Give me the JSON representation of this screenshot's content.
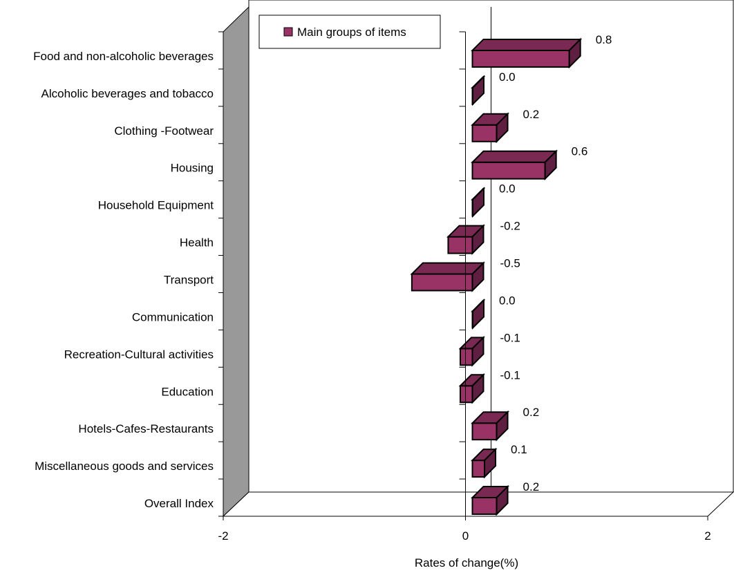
{
  "chart_data": {
    "type": "bar",
    "orientation": "horizontal",
    "three_d": true,
    "categories": [
      "Food and non-alcoholic beverages",
      "Alcoholic beverages and tobacco",
      "Clothing -Footwear",
      "Housing",
      "Household Equipment",
      "Health",
      "Transport",
      "Communication",
      "Recreation-Cultural activities",
      "Education",
      "Hotels-Cafes-Restaurants",
      "Miscellaneous goods and services",
      "Overall Index"
    ],
    "series": [
      {
        "name": "Main groups of items",
        "values": [
          0.8,
          0.0,
          0.2,
          0.6,
          0.0,
          -0.2,
          -0.5,
          0.0,
          -0.1,
          -0.1,
          0.2,
          0.1,
          0.2
        ],
        "labels": [
          "0.8",
          "0.0",
          "0.2",
          "0.6",
          "0.0",
          "-0.2",
          "-0.5",
          "0.0",
          "-0.1",
          "-0.1",
          "0.2",
          "0.1",
          "0.2"
        ]
      }
    ],
    "xlabel": "Rates of change(%)",
    "xlim": [
      -2,
      2
    ],
    "xticks": [
      "-2",
      "0",
      "2"
    ],
    "legend": "top-left",
    "colors": {
      "bar_front": "#993366",
      "bar_top": "#7a2a52",
      "bar_side": "#5e1f40",
      "wall_left": "#999999",
      "outline": "#000000"
    }
  }
}
